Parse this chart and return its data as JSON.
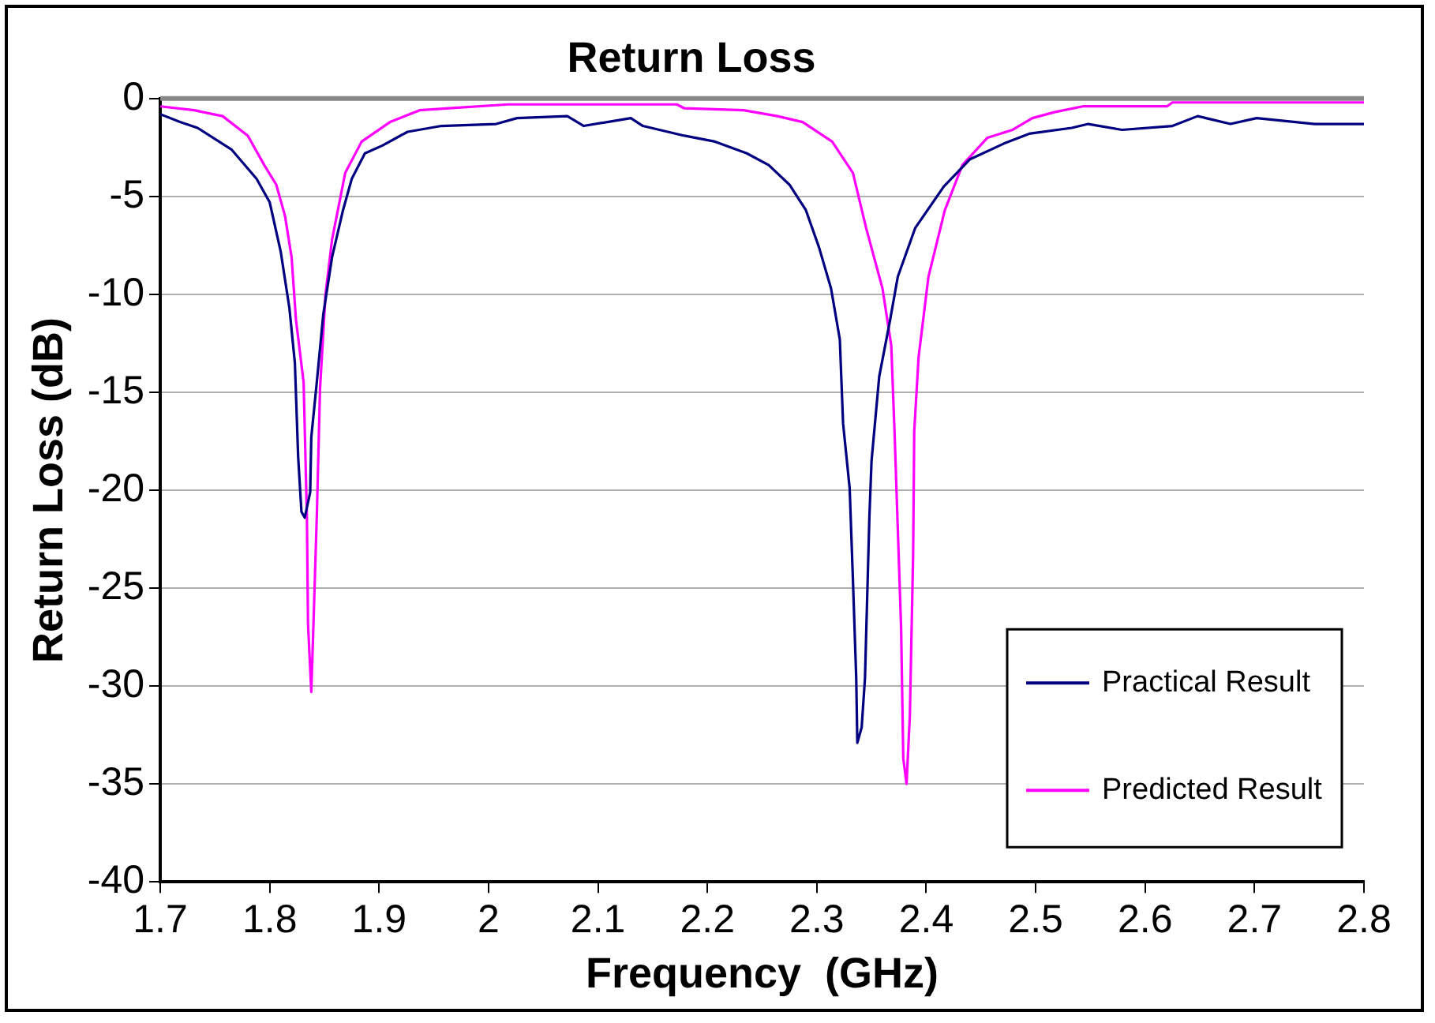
{
  "chart_data": {
    "type": "line",
    "title": "Return Loss",
    "xlabel": "Frequency  (GHz)",
    "ylabel": "Return Loss (dB)",
    "xlim": [
      1.7,
      2.8
    ],
    "xticks": [
      1.7,
      1.8,
      1.9,
      2,
      2.1,
      2.2,
      2.3,
      2.4,
      2.5,
      2.6,
      2.7,
      2.8
    ],
    "ylim": [
      -40,
      0
    ],
    "yticks": [
      -40,
      -35,
      -30,
      -25,
      -20,
      -15,
      -10,
      -5,
      0
    ],
    "grid": "y",
    "legend": "bottom right",
    "marker": "none",
    "line_style": "solid",
    "series": [
      {
        "name": "Practical Result",
        "color": "#000080",
        "x": [
          1.7,
          1.718,
          1.734,
          1.765,
          1.788,
          1.8,
          1.81,
          1.818,
          1.823,
          1.826,
          1.829,
          1.832,
          1.837,
          1.838,
          1.843,
          1.849,
          1.857,
          1.867,
          1.875,
          1.887,
          1.903,
          1.926,
          1.957,
          2.007,
          2.026,
          2.072,
          2.087,
          2.13,
          2.141,
          2.179,
          2.207,
          2.236,
          2.256,
          2.275,
          2.29,
          2.302,
          2.313,
          2.321,
          2.324,
          2.33,
          2.333,
          2.336,
          2.337,
          2.341,
          2.344,
          2.348,
          2.35,
          2.357,
          2.367,
          2.374,
          2.39,
          2.416,
          2.44,
          2.471,
          2.494,
          2.533,
          2.548,
          2.579,
          2.625,
          2.648,
          2.678,
          2.702,
          2.755,
          2.8
        ],
        "values": [
          -0.8,
          -1.2,
          -1.5,
          -2.6,
          -4.1,
          -5.3,
          -7.8,
          -10.7,
          -13.5,
          -18.3,
          -21.1,
          -21.4,
          -20.1,
          -17.3,
          -14.5,
          -11,
          -8.1,
          -5.7,
          -4.1,
          -2.8,
          -2.4,
          -1.7,
          -1.4,
          -1.3,
          -1,
          -0.9,
          -1.4,
          -1,
          -1.4,
          -1.9,
          -2.2,
          -2.8,
          -3.4,
          -4.4,
          -5.7,
          -7.6,
          -9.7,
          -12.3,
          -16.6,
          -19.9,
          -24.6,
          -29.6,
          -32.9,
          -32.1,
          -29.6,
          -21.4,
          -18.5,
          -14.2,
          -11.3,
          -9.1,
          -6.6,
          -4.5,
          -3.1,
          -2.3,
          -1.8,
          -1.5,
          -1.3,
          -1.6,
          -1.4,
          -0.9,
          -1.3,
          -1,
          -1.3,
          -1.3
        ]
      },
      {
        "name": "Predicted Result",
        "color": "#ff00ff",
        "x": [
          1.7,
          1.731,
          1.757,
          1.78,
          1.795,
          1.806,
          1.814,
          1.82,
          1.824,
          1.831,
          1.834,
          1.835,
          1.838,
          1.84,
          1.843,
          1.846,
          1.851,
          1.857,
          1.869,
          1.884,
          1.91,
          1.937,
          1.964,
          2.018,
          2.172,
          2.179,
          2.233,
          2.264,
          2.287,
          2.314,
          2.333,
          2.345,
          2.36,
          2.368,
          2.371,
          2.374,
          2.377,
          2.379,
          2.382,
          2.385,
          2.388,
          2.389,
          2.393,
          2.402,
          2.417,
          2.433,
          2.456,
          2.479,
          2.497,
          2.517,
          2.543,
          2.62,
          2.625,
          2.8
        ],
        "values": [
          -0.4,
          -0.6,
          -0.9,
          -1.9,
          -3.4,
          -4.4,
          -6,
          -8.1,
          -11.3,
          -14.5,
          -21.4,
          -26.8,
          -30.3,
          -26.8,
          -21.4,
          -14.8,
          -10,
          -7.2,
          -3.8,
          -2.2,
          -1.2,
          -0.6,
          -0.5,
          -0.3,
          -0.3,
          -0.5,
          -0.6,
          -0.9,
          -1.2,
          -2.2,
          -3.8,
          -6.6,
          -9.7,
          -12.6,
          -17,
          -22,
          -27,
          -33.7,
          -35,
          -31.5,
          -23.3,
          -17,
          -13.2,
          -9.1,
          -5.7,
          -3.4,
          -2,
          -1.6,
          -1,
          -0.7,
          -0.4,
          -0.4,
          -0.2,
          -0.2
        ]
      }
    ]
  }
}
